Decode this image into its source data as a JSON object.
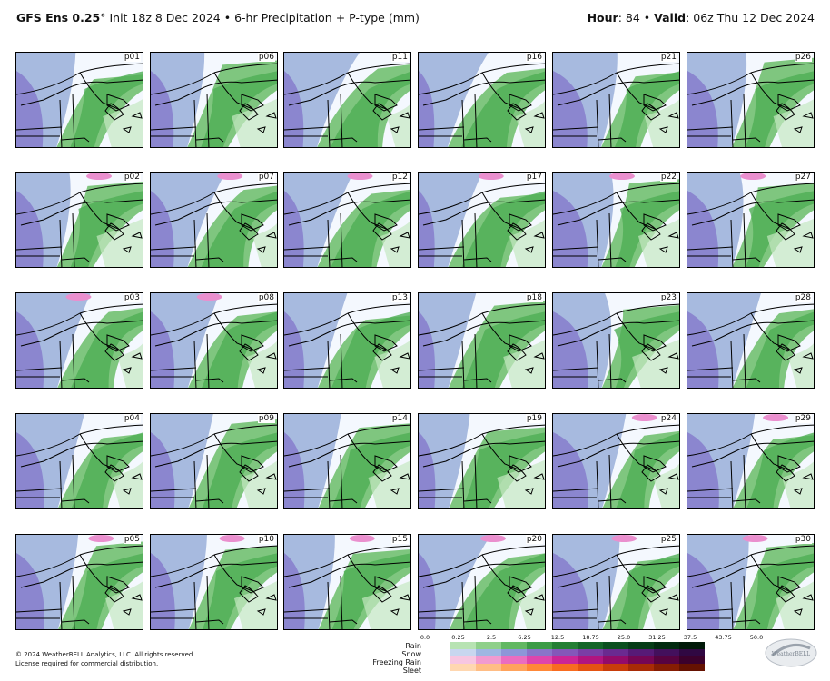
{
  "header": {
    "model": "GFS Ens 0.25",
    "degree": "°",
    "init": " Init 18z 8 Dec 2024",
    "bullet": " • ",
    "product": "6-hr Precipitation + P-type (mm)",
    "hour_label": "Hour",
    "hour_value": ": 84 • ",
    "valid_label": "Valid",
    "valid_value": ": 06z Thu 12 Dec 2024"
  },
  "panels": [
    [
      "p01",
      "p06",
      "p11",
      "p16",
      "p21",
      "p26"
    ],
    [
      "p02",
      "p07",
      "p12",
      "p17",
      "p22",
      "p27"
    ],
    [
      "p03",
      "p08",
      "p13",
      "p18",
      "p23",
      "p28"
    ],
    [
      "p04",
      "p09",
      "p14",
      "p19",
      "p24",
      "p29"
    ],
    [
      "p05",
      "p10",
      "p15",
      "p20",
      "p25",
      "p30"
    ]
  ],
  "legend": {
    "ticks": [
      "0.0",
      "0.25",
      "2.5",
      "6.25",
      "12.5",
      "18.75",
      "25.0",
      "31.25",
      "37.5",
      "43.75",
      "50.0"
    ],
    "rows": [
      "Rain",
      "Snow",
      "Freezing Rain",
      "Sleet"
    ],
    "colors": {
      "rain": [
        "#ffffff",
        "#b7e3b2",
        "#8fd08a",
        "#62b862",
        "#3c9c46",
        "#247f34",
        "#146628",
        "#0b501f",
        "#063d17",
        "#022b10",
        "#011a09"
      ],
      "snow": [
        "#ffffff",
        "#c8d6ef",
        "#9fb6e2",
        "#8d96d8",
        "#8a74c9",
        "#8457b9",
        "#7a3ea6",
        "#6a2a90",
        "#571a77",
        "#43105c",
        "#300842"
      ],
      "freezing": [
        "#ffffff",
        "#f7c6e1",
        "#f19ad0",
        "#ea6dc0",
        "#de45ad",
        "#cb2596",
        "#b01580",
        "#930b6a",
        "#750655",
        "#570340",
        "#3b012c"
      ],
      "sleet": [
        "#ffffff",
        "#ffd7b0",
        "#ffbd85",
        "#ffa35c",
        "#ff8838",
        "#f86c20",
        "#e45312",
        "#c83d0a",
        "#a82b06",
        "#861d03",
        "#651201"
      ]
    }
  },
  "footer": {
    "copyright": "© 2024 WeatherBELL Analytics, LLC. All rights reserved.",
    "license": "License required for commercial distribution."
  },
  "logo_text": "WeatherBELL"
}
